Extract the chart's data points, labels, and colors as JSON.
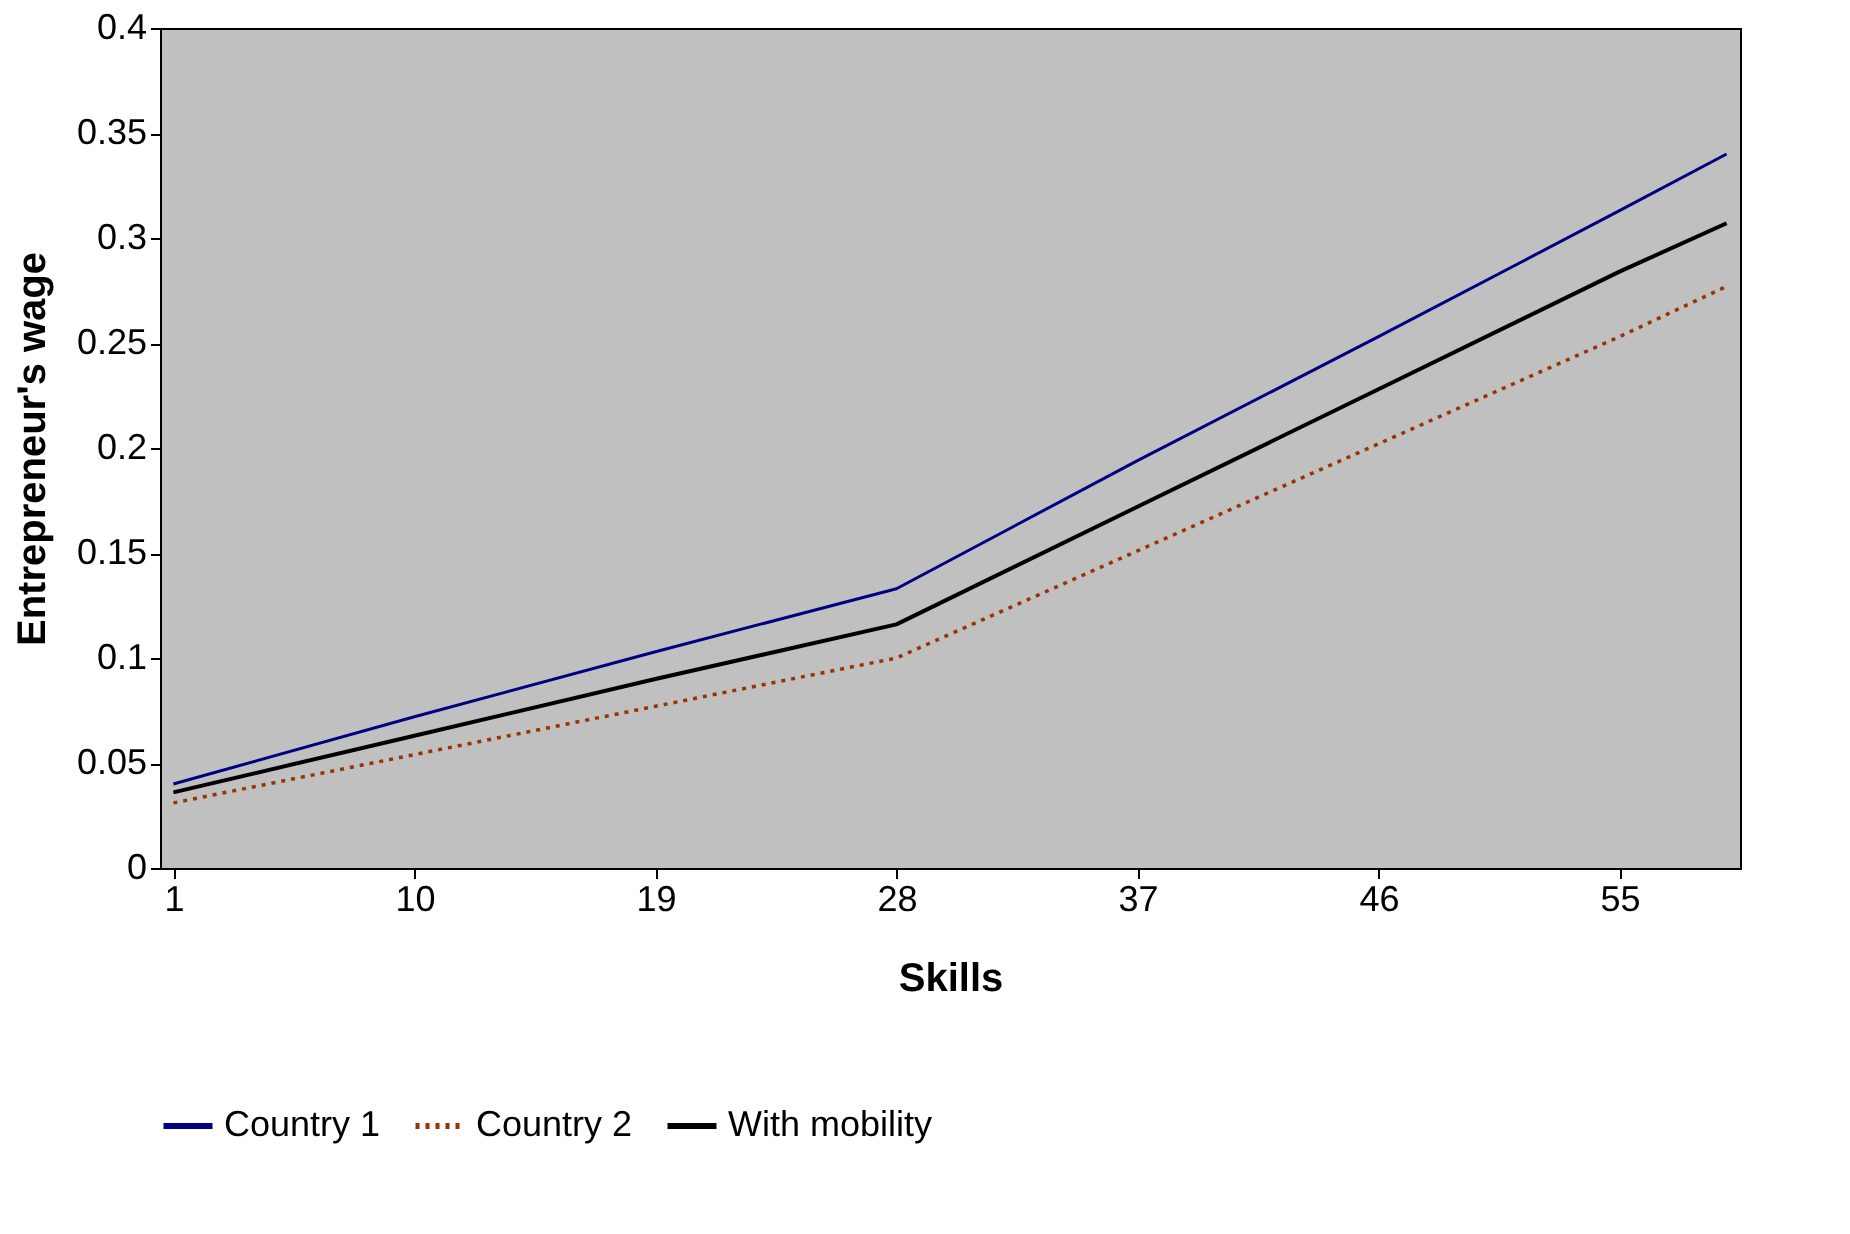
{
  "chart_data": {
    "type": "line",
    "xlabel": "Skills",
    "ylabel": "Entrepreneur's wage",
    "xlim": [
      0.5,
      59.5
    ],
    "xticks": [
      1,
      10,
      19,
      28,
      37,
      46,
      55
    ],
    "ylim": [
      0,
      0.4
    ],
    "yticks": [
      0,
      0.05,
      0.1,
      0.15,
      0.2,
      0.25,
      0.3,
      0.35,
      0.4
    ],
    "grid": false,
    "legend": "bottom",
    "marker": "none",
    "series": [
      {
        "name": "Country 1",
        "color": "#000080",
        "line_style": "solid",
        "x": [
          1,
          10,
          19,
          28,
          37,
          46,
          55,
          59
        ],
        "values": [
          0.04,
          0.072,
          0.103,
          0.133,
          0.194,
          0.253,
          0.313,
          0.34
        ]
      },
      {
        "name": "Country 2",
        "color": "#993300",
        "line_style": "dotted",
        "x": [
          1,
          10,
          19,
          28,
          37,
          46,
          55,
          59
        ],
        "values": [
          0.031,
          0.054,
          0.077,
          0.1,
          0.151,
          0.202,
          0.253,
          0.277
        ]
      },
      {
        "name": "With mobility",
        "color": "#000000",
        "line_style": "solid",
        "x": [
          1,
          10,
          19,
          28,
          37,
          46,
          55,
          59
        ],
        "values": [
          0.036,
          0.063,
          0.09,
          0.116,
          0.172,
          0.228,
          0.284,
          0.307
        ]
      }
    ]
  }
}
